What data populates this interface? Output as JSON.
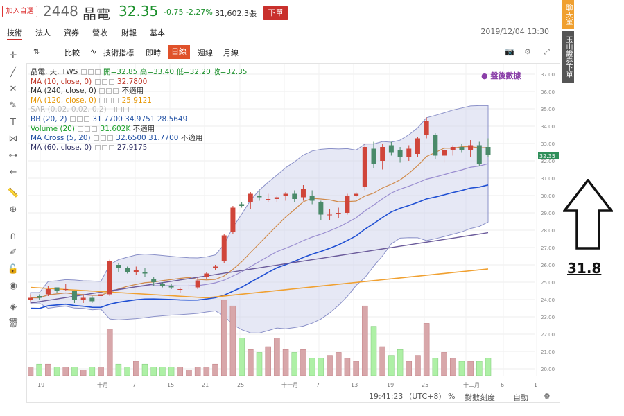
{
  "header": {
    "add_watch": "加入自選",
    "code": "2448",
    "name": "晶電",
    "price": "32.35",
    "change": "-0.75 -2.27%",
    "volume": "31,602.3張",
    "order": "下單"
  },
  "nav": {
    "tabs": [
      "技術",
      "法人",
      "資券",
      "營收",
      "財報",
      "基本"
    ],
    "datetime": "2019/12/04 13:30"
  },
  "side": {
    "chat": "聊天室",
    "order": "玉山證券下單"
  },
  "toolbar": {
    "items": [
      "比較",
      "技術指標",
      "即時",
      "日線",
      "週線",
      "月線"
    ],
    "active": "日線"
  },
  "legend": {
    "symbol": "晶電, 天, TWS",
    "ohlc": "開=32.85 高=33.40 低=32.20 收=32.35",
    "rows": [
      {
        "label": "MA (10, close, 0)",
        "values": [
          "32.7800"
        ],
        "color": "#c0392b"
      },
      {
        "label": "MA (240, close, 0)",
        "values": [
          "不適用"
        ],
        "color": "#333333"
      },
      {
        "label": "MA (120, close, 0)",
        "values": [
          "25.9121"
        ],
        "color": "#e69500"
      },
      {
        "label": "SAR (0.02, 0.02, 0.2)",
        "values": [],
        "color": "#bbbbbb"
      },
      {
        "label": "BB (20, 2)",
        "values": [
          "31.7700",
          "34.9751",
          "28.5649"
        ],
        "color": "#1f4fa3"
      },
      {
        "label": "Volume (20)",
        "values": [
          "31.602K",
          "不適用"
        ],
        "color": "#1a9f2a"
      },
      {
        "label": "MA Cross (5, 20)",
        "values": [
          "32.6500",
          "31.7700",
          "不適用"
        ],
        "color": "#1f4fa3"
      },
      {
        "label": "MA (60, close, 0)",
        "values": [
          "27.9175"
        ],
        "color": "#333366"
      }
    ],
    "after_hours": "盤後數據"
  },
  "chart_data": {
    "type": "candlestick",
    "y_ticks": [
      "37.00",
      "36.00",
      "35.00",
      "34.00",
      "33.00",
      "32.00",
      "31.00",
      "30.00",
      "29.00",
      "28.00",
      "27.00",
      "26.00",
      "25.00",
      "24.00",
      "23.00",
      "22.00",
      "21.00",
      "20.00"
    ],
    "x_ticks": [
      "19",
      "十月",
      "7",
      "15",
      "21",
      "25",
      "十一月",
      "7",
      "13",
      "19",
      "25",
      "十二月",
      "6",
      "1"
    ],
    "last_price_label": "32.35",
    "ylim": [
      19.6,
      37.6
    ]
  },
  "bottombar": {
    "time": "19:41:23",
    "tz": "(UTC+8)",
    "pct": "%",
    "log": "對數刻度",
    "auto": "自動"
  },
  "annotation": {
    "price": "31.8"
  },
  "colors": {
    "up": "#d0453a",
    "down": "#4a8a6a",
    "accent": "#e0512a"
  }
}
